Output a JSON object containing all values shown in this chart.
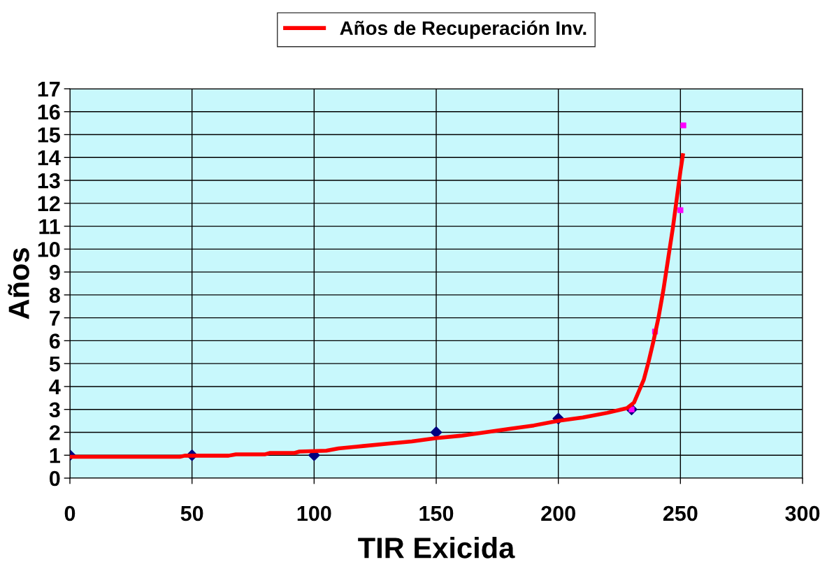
{
  "chart_data": {
    "type": "line",
    "xlabel": "TIR Exicida",
    "ylabel": "Años",
    "xlim": [
      0,
      300
    ],
    "xticks": [
      0,
      50,
      100,
      150,
      200,
      250,
      300
    ],
    "ylim": [
      0,
      17
    ],
    "yticks": [
      0,
      1,
      2,
      3,
      4,
      5,
      6,
      7,
      8,
      9,
      10,
      11,
      12,
      13,
      14,
      15,
      16,
      17
    ],
    "grid": true,
    "legend": "top",
    "series": [
      {
        "type": "scatter",
        "color": "#000080",
        "marker": "diamond",
        "x": [
          0,
          50,
          100,
          150,
          200,
          230
        ],
        "values": [
          1,
          1,
          1,
          2,
          2.6,
          3
        ]
      },
      {
        "type": "scatter",
        "color": "#ff00ff",
        "marker": "square",
        "x": [
          230,
          239.6,
          250,
          251.2
        ],
        "values": [
          3,
          6.4,
          11.7,
          15.4
        ]
      },
      {
        "name": "Años de Recuperación Inv.",
        "color": "#ff0000",
        "marker": "none",
        "line_style": "solid",
        "x": [
          0,
          45,
          47,
          65,
          68,
          80,
          82,
          92,
          94,
          105,
          110,
          120,
          130,
          140,
          150,
          160,
          170,
          180,
          190,
          200,
          210,
          220,
          228,
          231,
          233,
          235,
          237,
          239,
          241,
          243,
          245,
          247,
          249,
          250,
          251
        ],
        "values": [
          0.93,
          0.93,
          0.98,
          0.98,
          1.04,
          1.04,
          1.1,
          1.1,
          1.16,
          1.2,
          1.3,
          1.4,
          1.5,
          1.6,
          1.75,
          1.85,
          2.0,
          2.15,
          2.3,
          2.5,
          2.65,
          2.85,
          3.05,
          3.3,
          3.8,
          4.3,
          5.1,
          6.0,
          7.0,
          8.2,
          9.6,
          11.0,
          12.6,
          13.4,
          14.1
        ]
      }
    ]
  }
}
